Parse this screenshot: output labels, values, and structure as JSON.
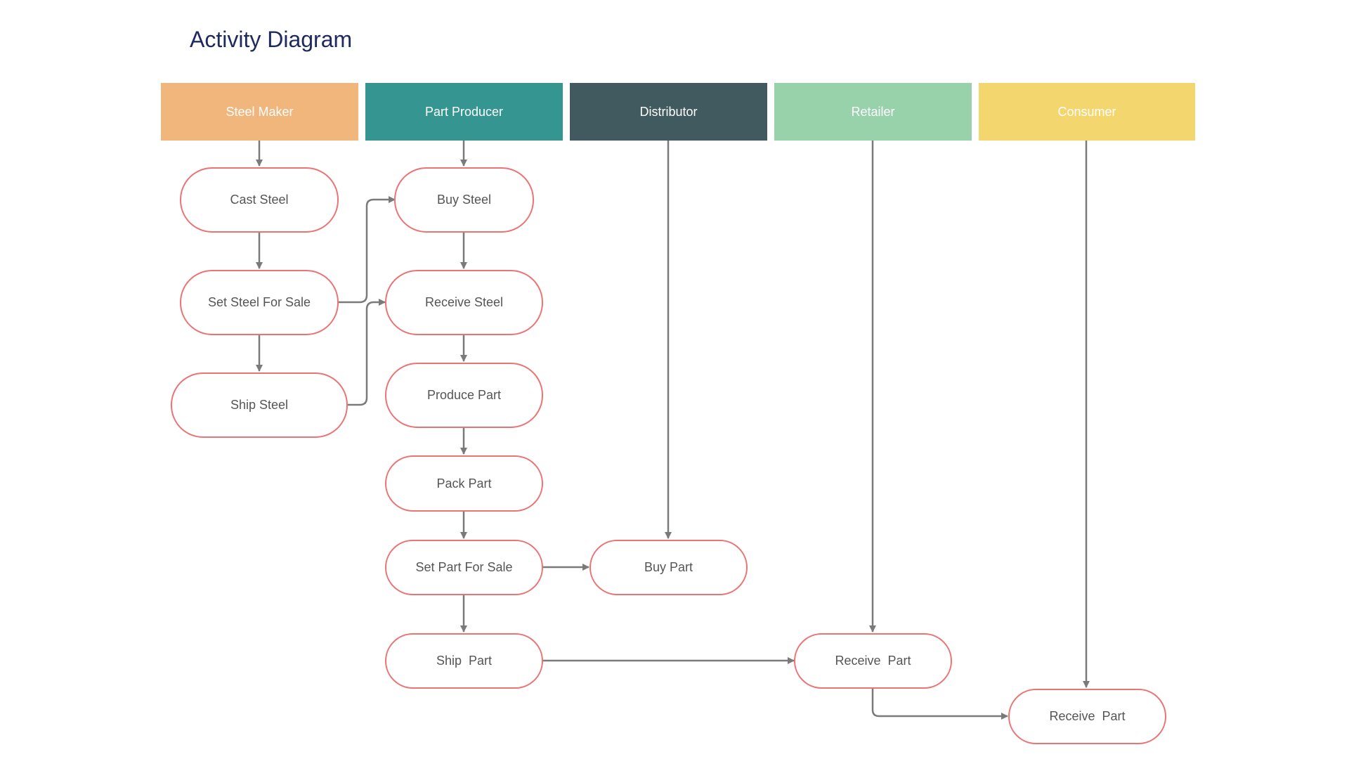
{
  "title": "Activity Diagram",
  "lanes": [
    {
      "label": "Steel Maker",
      "color": "#f1b67c"
    },
    {
      "label": "Part Producer",
      "color": "#359590"
    },
    {
      "label": "Distributor",
      "color": "#405a60"
    },
    {
      "label": "Retailer",
      "color": "#97d2ab"
    },
    {
      "label": "Consumer",
      "color": "#f4d66f"
    }
  ],
  "nodes": {
    "cast_steel": "Cast Steel",
    "set_steel_for_sale": "Set Steel For Sale",
    "ship_steel": "Ship Steel",
    "buy_steel": "Buy Steel",
    "receive_steel": "Receive Steel",
    "produce_part": "Produce Part",
    "pack_part": "Pack Part",
    "set_part_for_sale": "Set Part For Sale",
    "ship_part": "Ship  Part",
    "buy_part": "Buy Part",
    "receive_part_retailer": "Receive  Part",
    "receive_part_consumer": "Receive  Part"
  },
  "colors": {
    "node_border": "#ec7374",
    "connector": "#7a7a7a",
    "title": "#1e2a5e"
  }
}
